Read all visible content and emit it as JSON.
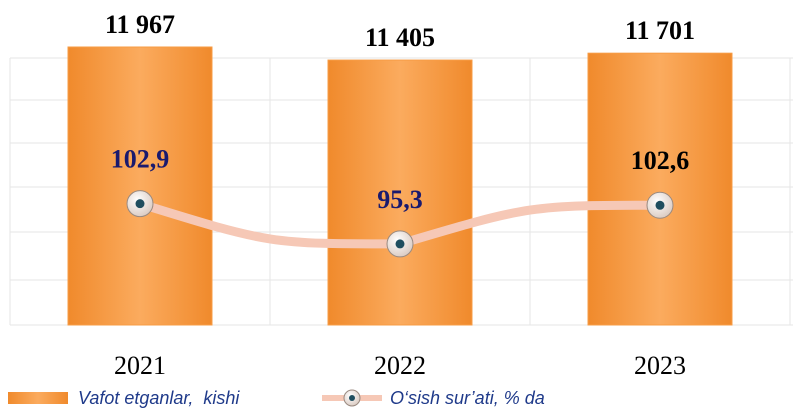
{
  "chart_data": {
    "type": "bar-line",
    "categories": [
      "2021",
      "2022",
      "2023"
    ],
    "series": [
      {
        "name": "Vafot etganlar,  kishi",
        "type": "bar",
        "color": "#f79c45",
        "values": [
          11967,
          11405,
          11701
        ],
        "value_labels": [
          "11 967",
          "11 405",
          "11 701"
        ]
      },
      {
        "name": "O‘sish sur’ati, % da",
        "type": "line",
        "axis": "y2",
        "color": "#f6c8b6",
        "values": [
          102.9,
          95.3,
          102.6
        ],
        "value_labels": [
          "102,9",
          "95,3",
          "102,6"
        ]
      }
    ],
    "ylim": [
      0,
      13000
    ],
    "y2lim": [
      80,
      137
    ],
    "grid": true
  }
}
